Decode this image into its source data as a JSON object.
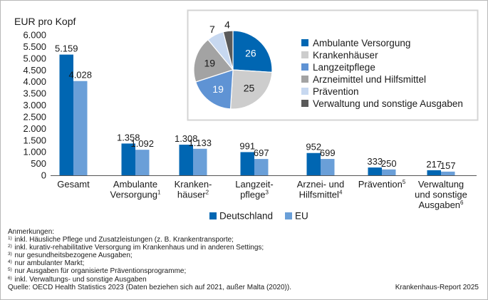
{
  "colors": {
    "deutschland": "#0066b2",
    "eu": "#6a9fd8",
    "pie": [
      "#0066b2",
      "#cdcdcd",
      "#5f93d4",
      "#a3a3a3",
      "#c7d8f0",
      "#5a5a5a"
    ],
    "frame": "#b8b8b8",
    "pie_box": "#d4d4d4"
  },
  "chart_data": [
    {
      "type": "bar",
      "ylabel": "EUR pro Kopf",
      "ylim": [
        0,
        6000
      ],
      "yticks": [
        0,
        500,
        1000,
        1500,
        2000,
        2500,
        3000,
        3500,
        4000,
        4500,
        5000,
        5500,
        6000
      ],
      "ytick_labels": [
        "0",
        "500",
        "1.000",
        "1.500",
        "2.000",
        "2.500",
        "3.000",
        "3.500",
        "4.000",
        "4.500",
        "5.000",
        "5.500",
        "6.000"
      ],
      "categories": [
        {
          "lines": [
            "Gesamt"
          ],
          "sup": ""
        },
        {
          "lines": [
            "Ambulante",
            "Versorgung"
          ],
          "sup": "1"
        },
        {
          "lines": [
            "Kranken-",
            "häuser"
          ],
          "sup": "2"
        },
        {
          "lines": [
            "Langzeit-",
            "pflege"
          ],
          "sup": "3"
        },
        {
          "lines": [
            "Arznei- und",
            "Hilfsmittel"
          ],
          "sup": "4"
        },
        {
          "lines": [
            "Prävention"
          ],
          "sup": "5"
        },
        {
          "lines": [
            "Verwaltung",
            "und sonstige",
            "Ausgaben"
          ],
          "sup": "6"
        }
      ],
      "series": [
        {
          "name": "Deutschland",
          "values": [
            5159,
            1358,
            1308,
            991,
            952,
            333,
            217
          ],
          "labels": [
            "5.159",
            "1.358",
            "1.308",
            "991",
            "952",
            "333",
            "217"
          ]
        },
        {
          "name": "EU",
          "values": [
            4028,
            1092,
            1133,
            697,
            699,
            250,
            157
          ],
          "labels": [
            "4.028",
            "1.092",
            "1.133",
            "697",
            "699",
            "250",
            "157"
          ]
        }
      ],
      "legend": "bottom"
    },
    {
      "type": "pie",
      "slices": [
        {
          "label": "Ambulante Versorgung",
          "value": 26,
          "value_label": "26"
        },
        {
          "label": "Krankenhäuser",
          "value": 25,
          "value_label": "25"
        },
        {
          "label": "Langzeitpflege",
          "value": 19,
          "value_label": "19"
        },
        {
          "label": "Arzneimittel und Hilfsmittel",
          "value": 19,
          "value_label": "19"
        },
        {
          "label": "Prävention",
          "value": 7,
          "value_label": "7"
        },
        {
          "label": "Verwaltung und sonstige Ausgaben",
          "value": 4,
          "value_label": "4"
        }
      ],
      "legend": "right"
    }
  ],
  "notes": {
    "heading": "Anmerkungen:",
    "items": [
      {
        "sup": "1)",
        "text": "inkl. Häusliche Pflege und Zusatzleistungen (z. B. Krankentransporte;"
      },
      {
        "sup": "2)",
        "text": "inkl. kurativ-rehabilitative Versorgung im Krankenhaus und in anderen Settings;"
      },
      {
        "sup": "3)",
        "text": "nur gesundheitsbezogene Ausgaben;"
      },
      {
        "sup": "4)",
        "text": "nur ambulanter Markt;"
      },
      {
        "sup": "5)",
        "text": "nur Ausgaben für organisierte Präventionsprogramme;"
      },
      {
        "sup": "6)",
        "text": "inkl. Verwaltungs- und sonstige Ausgaben"
      }
    ],
    "source": "Quelle: OECD Health Statistics 2023 (Daten beziehen sich auf 2021, außer Malta (2020))."
  },
  "credit": "Krankenhaus-Report 2025"
}
